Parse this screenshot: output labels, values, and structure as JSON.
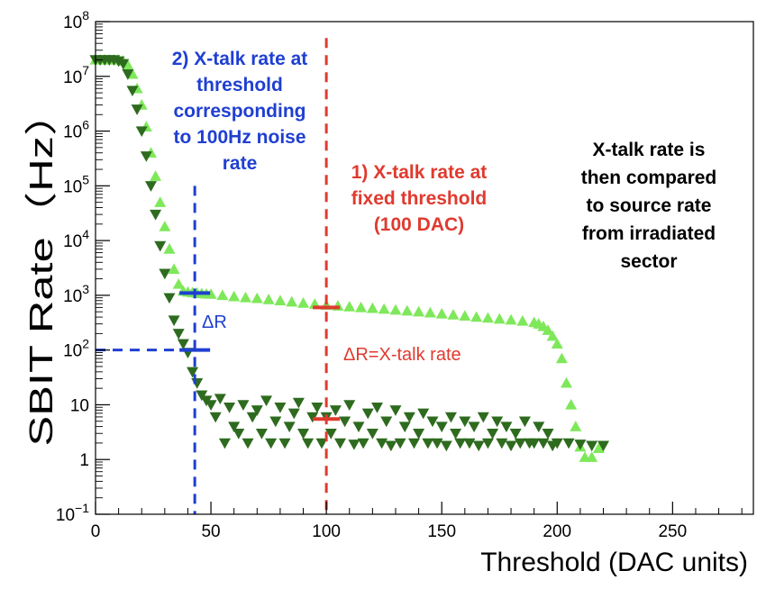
{
  "chart_data": {
    "type": "scatter",
    "title": "",
    "xlabel": "Threshold (DAC units)",
    "ylabel": "SBIT Rate（Hz）",
    "xlim": [
      0,
      285
    ],
    "ylim": [
      0.1,
      100000000
    ],
    "yscale": "log",
    "grid": false,
    "x_ticks": [
      0,
      50,
      100,
      150,
      200,
      250
    ],
    "x_tick_labels": [
      "0",
      "50",
      "100",
      "150",
      "200",
      "250"
    ],
    "y_ticks": [
      {
        "value": 0.1,
        "base": "10",
        "exp": "−1",
        "text": ""
      },
      {
        "value": 1,
        "base": "",
        "exp": "",
        "text": "1"
      },
      {
        "value": 10,
        "base": "",
        "exp": "",
        "text": "10"
      },
      {
        "value": 100,
        "base": "10",
        "exp": "2",
        "text": ""
      },
      {
        "value": 1000,
        "base": "10",
        "exp": "3",
        "text": ""
      },
      {
        "value": 10000,
        "base": "10",
        "exp": "4",
        "text": ""
      },
      {
        "value": 100000,
        "base": "10",
        "exp": "5",
        "text": ""
      },
      {
        "value": 1000000,
        "base": "10",
        "exp": "6",
        "text": ""
      },
      {
        "value": 10000000,
        "base": "10",
        "exp": "7",
        "text": ""
      },
      {
        "value": 100000000,
        "base": "10",
        "exp": "8",
        "text": ""
      }
    ],
    "series": [
      {
        "marker": "triangle-up",
        "color": "#7ee85a",
        "x": [
          0,
          2,
          4,
          6,
          8,
          10,
          12,
          14,
          16,
          18,
          20,
          22,
          24,
          26,
          28,
          30,
          32,
          34,
          36,
          38,
          40,
          42,
          44,
          46,
          48,
          50,
          55,
          60,
          65,
          70,
          75,
          80,
          85,
          90,
          95,
          100,
          105,
          110,
          115,
          120,
          125,
          130,
          135,
          140,
          145,
          150,
          155,
          160,
          165,
          170,
          175,
          180,
          185,
          190,
          192,
          194,
          196,
          198,
          200,
          202,
          204,
          206,
          208,
          210,
          212,
          215,
          218
        ],
        "y": [
          20000000,
          20000000,
          20000000,
          20000000,
          20000000,
          20000000,
          19000000,
          16000000,
          11000000,
          6000000,
          3000000,
          1200000,
          400000,
          150000,
          50000,
          18000,
          7000,
          3000,
          1600,
          1200,
          1150,
          1120,
          1100,
          1080,
          1060,
          1050,
          1000,
          950,
          910,
          880,
          840,
          800,
          760,
          720,
          690,
          660,
          640,
          620,
          600,
          580,
          560,
          540,
          520,
          500,
          480,
          460,
          440,
          420,
          400,
          385,
          370,
          355,
          340,
          320,
          300,
          270,
          230,
          180,
          130,
          70,
          25,
          10,
          4,
          1.7,
          1.1,
          1.1,
          1.6
        ],
        "name": ""
      },
      {
        "marker": "triangle-down",
        "color": "#2e6b1f",
        "x": [
          0,
          2,
          4,
          6,
          8,
          10,
          12,
          14,
          16,
          18,
          20,
          22,
          24,
          26,
          28,
          30,
          32,
          34,
          36,
          38,
          40,
          42,
          44,
          46,
          48,
          50,
          52,
          54,
          56,
          58,
          60,
          62,
          64,
          66,
          68,
          70,
          72,
          74,
          76,
          78,
          80,
          82,
          84,
          86,
          88,
          90,
          92,
          94,
          96,
          98,
          100,
          102,
          104,
          106,
          108,
          110,
          112,
          114,
          116,
          118,
          120,
          122,
          124,
          126,
          128,
          130,
          132,
          134,
          136,
          138,
          140,
          142,
          144,
          146,
          148,
          150,
          152,
          154,
          156,
          158,
          160,
          162,
          164,
          166,
          168,
          170,
          172,
          174,
          176,
          178,
          180,
          182,
          184,
          186,
          188,
          190,
          192,
          194,
          196,
          198,
          200,
          205,
          210,
          215,
          220
        ],
        "y": [
          20000000,
          20000000,
          20000000,
          20000000,
          20000000,
          19000000,
          17000000,
          11000000,
          5500000,
          2500000,
          1000000,
          350000,
          100000,
          30000,
          8000,
          2500,
          900,
          350,
          200,
          130,
          90,
          40,
          25,
          15,
          12,
          10,
          6,
          13,
          2,
          9,
          4,
          3,
          10,
          2,
          6,
          8,
          3,
          12,
          2,
          5,
          9,
          2,
          4,
          7,
          11,
          3,
          2,
          6,
          9,
          2,
          6,
          3,
          8,
          2,
          5,
          10,
          1.9,
          4,
          2,
          7,
          3,
          9,
          2,
          5,
          1.8,
          8,
          2,
          4,
          6,
          2,
          3,
          7,
          2,
          5,
          2,
          4,
          1.8,
          6,
          3,
          2,
          5,
          2,
          4,
          1.8,
          6,
          2,
          3,
          5,
          2,
          4,
          1.8,
          3,
          2,
          5,
          2,
          2,
          4,
          2,
          3,
          1.8,
          2,
          2,
          1.9,
          1.8,
          1.8
        ],
        "name": ""
      }
    ],
    "annotations": [
      {
        "id": "blue-note",
        "color": "#1f3fd1",
        "lines": [
          "2) X-talk rate at",
          "threshold",
          "corresponding",
          "to 100Hz noise",
          "rate"
        ]
      },
      {
        "id": "red-note",
        "color": "#e03a2f",
        "lines": [
          "1) X-talk rate at",
          "fixed threshold",
          "(100 DAC)"
        ]
      },
      {
        "id": "black-note",
        "color": "#000000",
        "lines": [
          "X-talk rate is",
          "then compared",
          "to source rate",
          "from irradiated",
          "sector"
        ]
      },
      {
        "id": "delta-r-blue",
        "color": "#1f3fd1",
        "text": "ΔR"
      },
      {
        "id": "delta-r-red",
        "color": "#e03a2f",
        "text": "ΔR=X-talk rate"
      }
    ],
    "guide_lines": {
      "blue_vertical_x": 43,
      "blue_horizontal_y": 100,
      "blue_marks_y": [
        1100,
        100
      ],
      "red_vertical_x": 100,
      "red_marks_y": [
        600,
        5.5
      ]
    },
    "colors": {
      "blue": "#1f3fd1",
      "red": "#e03a2f",
      "light_green": "#7ee85a",
      "dark_green": "#2e6b1f"
    }
  }
}
